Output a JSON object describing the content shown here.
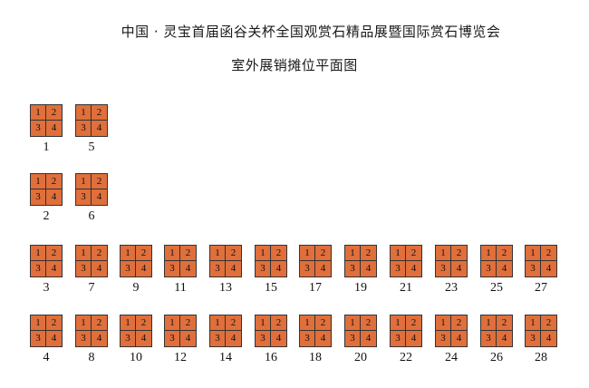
{
  "title_line1": "中国 · 灵宝首届函谷关杯全国观赏石精品展暨国际赏石博览会",
  "title_line2": "室外展销摊位平面图",
  "cell_labels": [
    "1",
    "2",
    "3",
    "4"
  ],
  "booth_color": "#e06f3b",
  "left_column": [
    {
      "row": 1,
      "booths": [
        "1",
        "5"
      ]
    },
    {
      "row": 2,
      "booths": [
        "2",
        "6"
      ]
    }
  ],
  "row3_booths": [
    "3",
    "7",
    "9",
    "11",
    "13",
    "15",
    "17",
    "19",
    "21",
    "23",
    "25",
    "27"
  ],
  "row4_booths": [
    "4",
    "8",
    "10",
    "12",
    "14",
    "16",
    "18",
    "20",
    "22",
    "24",
    "26",
    "28"
  ]
}
